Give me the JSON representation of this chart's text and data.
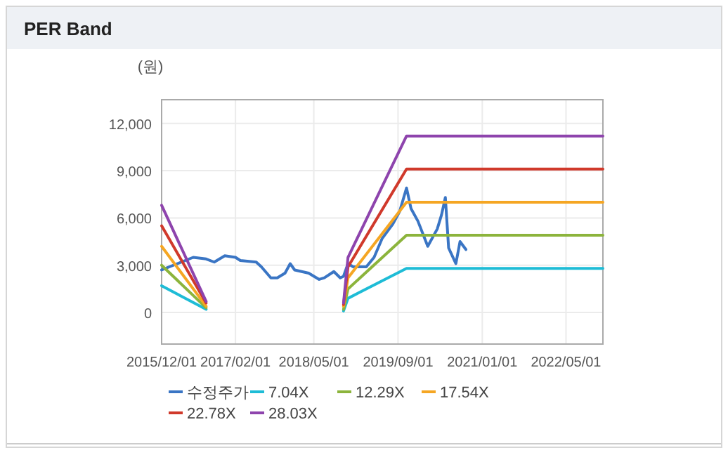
{
  "chart_data": {
    "type": "line",
    "title": "PER Band",
    "ylabel": "(원)",
    "xlim": [
      "2015-12-01",
      "2022-12-01"
    ],
    "ylim": [
      -2000,
      13500
    ],
    "xticks": [
      {
        "value": "2015-12-01",
        "label": "2015/12/01"
      },
      {
        "value": "2017-02-01",
        "label": "2017/02/01"
      },
      {
        "value": "2018-05-01",
        "label": "2018/05/01"
      },
      {
        "value": "2019-09-01",
        "label": "2019/09/01"
      },
      {
        "value": "2021-01-01",
        "label": "2021/01/01"
      },
      {
        "value": "2022-05-01",
        "label": "2022/05/01"
      }
    ],
    "yticks": [
      {
        "value": 0,
        "label": "0"
      },
      {
        "value": 3000,
        "label": "3,000"
      },
      {
        "value": 6000,
        "label": "6,000"
      },
      {
        "value": 9000,
        "label": "9,000"
      },
      {
        "value": 12000,
        "label": "12,000"
      }
    ],
    "grid": true,
    "legend": "bottom",
    "marker": "none",
    "line_style": "solid",
    "series": [
      {
        "name": "수정주가",
        "color": "#3a75c4",
        "x": [
          "2015-12-01",
          "2016-03-01",
          "2016-06-01",
          "2016-08-15",
          "2016-10-01",
          "2016-12-01",
          "2017-02-01",
          "2017-03-01",
          "2017-06-01",
          "2017-07-01",
          "2017-08-25",
          "2017-10-01",
          "2017-11-15",
          "2017-12-15",
          "2018-01-10",
          "2018-04-01",
          "2018-06-01",
          "2018-07-01",
          "2018-08-25",
          "2018-10-01",
          "2018-10-20",
          "2018-11-15",
          "2018-12-15",
          "2019-03-01",
          "2019-04-15",
          "2019-06-01",
          "2019-08-01",
          "2019-09-10",
          "2019-10-20",
          "2019-11-15",
          "2019-12-25",
          "2020-02-20",
          "2020-04-15",
          "2020-05-10",
          "2020-06-01",
          "2020-06-20",
          "2020-08-01",
          "2020-08-25",
          "2020-09-28"
        ],
        "values": [
          2700,
          3100,
          3500,
          3400,
          3200,
          3600,
          3500,
          3300,
          3200,
          2900,
          2200,
          2200,
          2500,
          3100,
          2700,
          2500,
          2100,
          2200,
          2600,
          2200,
          2300,
          3100,
          2900,
          2900,
          3500,
          4700,
          5600,
          6400,
          7900,
          6600,
          5800,
          4200,
          5300,
          6200,
          7300,
          4100,
          3100,
          4500,
          4000
        ]
      },
      {
        "name": "7.04X",
        "color": "#1ebcd6",
        "x": [
          "2015-12-01",
          "2016-08-15",
          "2017-09-01",
          "2018-10-20",
          "2018-11-15",
          "2019-10-20",
          "2022-12-01"
        ],
        "values": [
          1700,
          200,
          null,
          100,
          900,
          2800,
          2800
        ]
      },
      {
        "name": "12.29X",
        "color": "#8cb43c",
        "x": [
          "2015-12-01",
          "2016-08-15",
          "2017-09-01",
          "2018-10-20",
          "2018-11-15",
          "2019-10-20",
          "2022-12-01"
        ],
        "values": [
          3000,
          300,
          null,
          200,
          1500,
          4900,
          4900
        ]
      },
      {
        "name": "17.54X",
        "color": "#f5a623",
        "x": [
          "2015-12-01",
          "2016-08-15",
          "2017-09-01",
          "2018-10-20",
          "2018-11-15",
          "2019-10-20",
          "2022-12-01"
        ],
        "values": [
          4200,
          400,
          null,
          400,
          2200,
          7000,
          7000
        ]
      },
      {
        "name": "22.78X",
        "color": "#d0392b",
        "x": [
          "2015-12-01",
          "2016-08-15",
          "2017-09-01",
          "2018-10-20",
          "2018-11-15",
          "2019-10-20",
          "2022-12-01"
        ],
        "values": [
          5500,
          600,
          null,
          500,
          2900,
          9100,
          9100
        ]
      },
      {
        "name": "28.03X",
        "color": "#8e44ad",
        "x": [
          "2015-12-01",
          "2016-08-15",
          "2017-09-01",
          "2018-10-20",
          "2018-11-15",
          "2019-10-20",
          "2022-12-01"
        ],
        "values": [
          6800,
          700,
          null,
          600,
          3500,
          11200,
          11200
        ]
      }
    ]
  }
}
